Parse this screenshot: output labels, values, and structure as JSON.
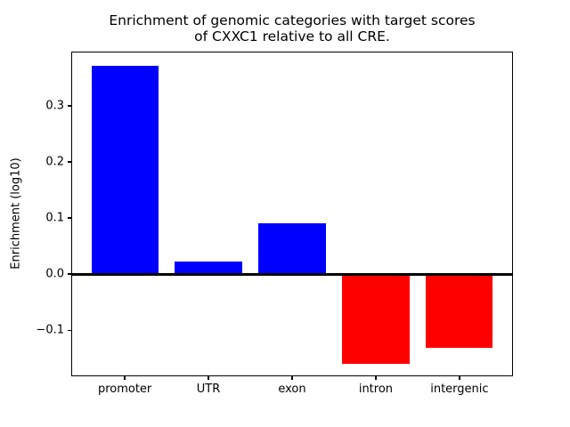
{
  "chart_data": {
    "type": "bar",
    "title": "Enrichment of genomic categories with target scores\nof CXXC1 relative to all CRE.",
    "xlabel": "",
    "ylabel": "Enrichment (log10)",
    "categories": [
      "promoter",
      "UTR",
      "exon",
      "intron",
      "intergenic"
    ],
    "values": [
      0.372,
      0.022,
      0.091,
      -0.16,
      -0.131
    ],
    "bar_colors": [
      "#0000ff",
      "#0000ff",
      "#0000ff",
      "#ff0000",
      "#ff0000"
    ],
    "positive_color": "#0000ff",
    "negative_color": "#ff0000",
    "yticks": [
      -0.1,
      0.0,
      0.1,
      0.2,
      0.3
    ],
    "ytick_labels": [
      "−0.1",
      "0.0",
      "0.1",
      "0.2",
      "0.3"
    ],
    "ylim": [
      -0.182,
      0.397
    ],
    "xlim": [
      -0.64,
      4.64
    ],
    "bar_width": 0.8,
    "grid": false,
    "zero_line": true,
    "legend": null,
    "background_color": "#ffffff",
    "axis_color": "#000000"
  }
}
